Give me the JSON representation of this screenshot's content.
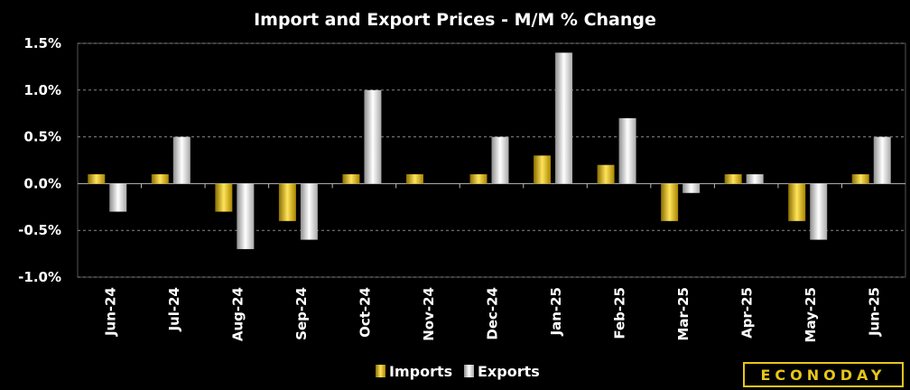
{
  "chart_data": {
    "type": "bar",
    "title": "Import and Export Prices - M/M % Change",
    "categories": [
      "Jun-24",
      "Jul-24",
      "Aug-24",
      "Sep-24",
      "Oct-24",
      "Nov-24",
      "Dec-24",
      "Jan-25",
      "Feb-25",
      "Mar-25",
      "Apr-25",
      "May-25",
      "Jun-25"
    ],
    "series": [
      {
        "name": "Imports",
        "color": "#e6c619",
        "values": [
          0.1,
          0.1,
          -0.3,
          -0.4,
          0.1,
          0.1,
          0.1,
          0.3,
          0.2,
          -0.4,
          0.1,
          -0.4,
          0.1
        ]
      },
      {
        "name": "Exports",
        "color": "#cfcfcf",
        "values": [
          -0.3,
          0.5,
          -0.7,
          -0.6,
          1.0,
          0.0,
          0.5,
          1.4,
          0.7,
          -0.1,
          0.1,
          -0.6,
          0.5
        ]
      }
    ],
    "ylim": [
      -1.0,
      1.5
    ],
    "yticks": [
      "1.5%",
      "1.0%",
      "0.5%",
      "0.0%",
      "-0.5%",
      "-1.0%"
    ],
    "grid": true,
    "legend_position": "bottom-center"
  },
  "branding": {
    "logo_text": "ECONODAY"
  }
}
